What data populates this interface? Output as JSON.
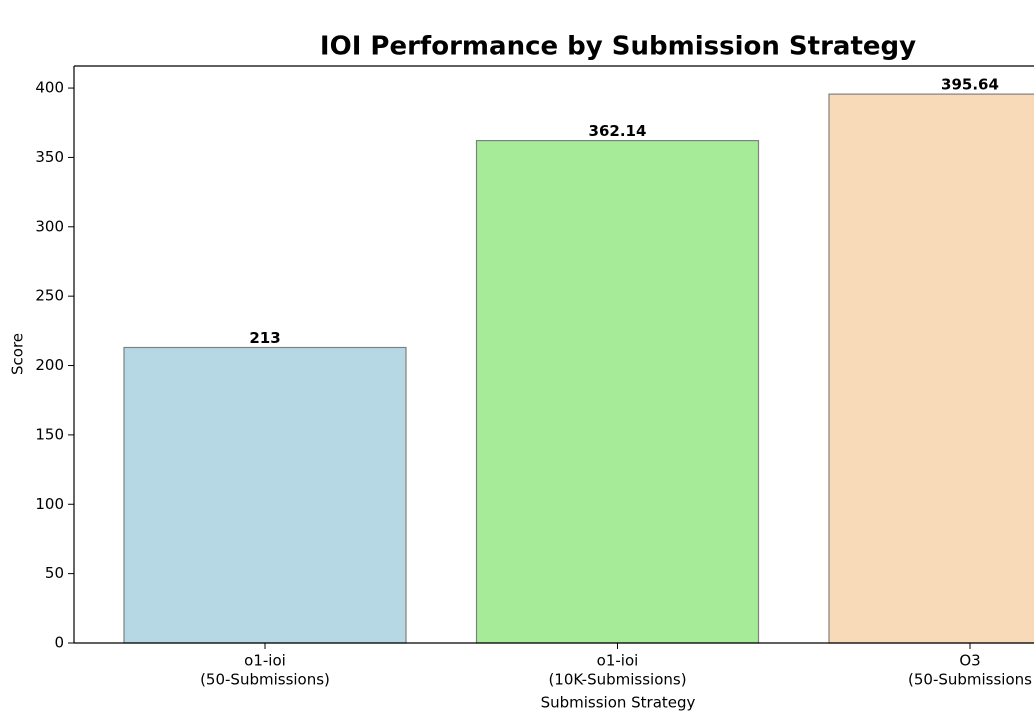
{
  "chart_data": {
    "type": "bar",
    "title": "IOI Performance by Submission Strategy",
    "x_label": "Submission Strategy",
    "y_label": "Score",
    "categories": [
      [
        "o1-ioi",
        "(50-Submissions)"
      ],
      [
        "o1-ioi",
        "(10K-Submissions)"
      ],
      [
        "O3",
        "(50-Submissions"
      ]
    ],
    "values": [
      213,
      362.14,
      395.64
    ],
    "colors": [
      "#b5d8e4",
      "#a5eb98",
      "#f8d9b8"
    ],
    "edge_color": "#808080",
    "ylim": [
      0,
      415.9
    ],
    "yticks": [
      0,
      50,
      100,
      150,
      200,
      250,
      300,
      350,
      400
    ],
    "grid": false
  }
}
